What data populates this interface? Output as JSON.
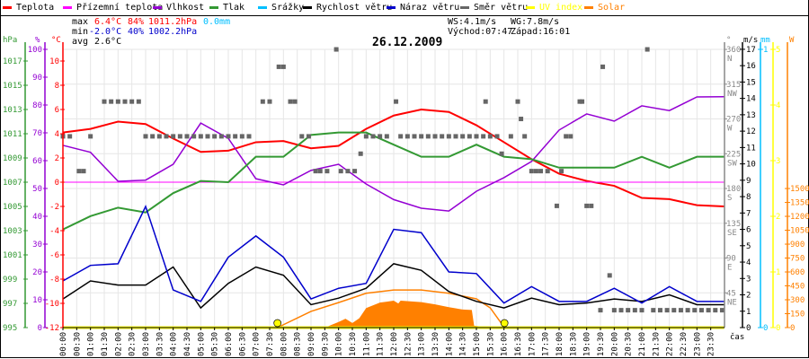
{
  "legend": [
    {
      "label": "Teplota",
      "color": "#ff0000"
    },
    {
      "label": "Přízemní teplota",
      "color": "#ff00ff"
    },
    {
      "label": "Vlhkost",
      "color": "#9400d3"
    },
    {
      "label": "Tlak",
      "color": "#339933"
    },
    {
      "label": "Srážky",
      "color": "#00bfff"
    },
    {
      "label": "Rychlost větru",
      "color": "#000000"
    },
    {
      "label": "Náraz větru",
      "color": "#0000cc"
    },
    {
      "label": "Směr větru",
      "color": "#666666"
    },
    {
      "label": "UV index",
      "color": "#ffff00"
    },
    {
      "label": "Solar",
      "color": "#ff8000"
    }
  ],
  "stats": {
    "max_label": "max",
    "max_temp": "6.4°C",
    "max_hum": "84%",
    "max_press": "1011.2hPa",
    "max_rain": "0.0mm",
    "min_label": "min",
    "min_temp": "-2.0°C",
    "min_hum": "40%",
    "min_press": "1002.2hPa",
    "avg_label": "avg",
    "avg_temp": "2.6°C",
    "ws": "WS:4.1m/s",
    "wg": "WG:7.8m/s",
    "sunrise": "Východ:07:47",
    "sunset": "Západ:16:01"
  },
  "chart_data": {
    "type": "line",
    "title": "26.12.2009",
    "xlabel": "čas",
    "grid": true,
    "x_ticks": [
      "00:00",
      "00:30",
      "01:00",
      "01:30",
      "02:00",
      "02:30",
      "03:00",
      "03:30",
      "04:00",
      "04:30",
      "05:00",
      "05:30",
      "06:00",
      "06:30",
      "07:00",
      "07:30",
      "08:00",
      "08:30",
      "09:00",
      "09:30",
      "10:00",
      "10:30",
      "11:00",
      "11:30",
      "12:00",
      "12:30",
      "13:00",
      "13:30",
      "14:00",
      "14:30",
      "15:00",
      "15:30",
      "16:00",
      "16:30",
      "17:00",
      "17:30",
      "18:00",
      "18:30",
      "19:00",
      "19:30",
      "20:00",
      "20:30",
      "21:00",
      "21:30",
      "22:00",
      "22:30",
      "23:00",
      "23:30"
    ],
    "axes": {
      "pressure": {
        "unit": "hPa",
        "range": [
          995,
          1018
        ],
        "ticks": [
          "995",
          "997",
          "999",
          "1001",
          "1003",
          "1005",
          "1007",
          "1009",
          "1011",
          "1013",
          "1015",
          "1017"
        ],
        "color": "#339933"
      },
      "humidity": {
        "unit": "%",
        "range": [
          0,
          100
        ],
        "ticks": [
          "0",
          "10",
          "20",
          "30",
          "40",
          "50",
          "60",
          "70",
          "80",
          "90",
          "100"
        ],
        "color": "#9400d3"
      },
      "temperature": {
        "unit": "°C",
        "range": [
          -12,
          11
        ],
        "ticks": [
          "-12",
          "-10",
          "-8",
          "-6",
          "-4",
          "-2",
          "0",
          "2",
          "4",
          "6",
          "8",
          "10"
        ],
        "color": "#ff0000"
      },
      "direction": {
        "unit": "°",
        "range": [
          0,
          360
        ],
        "ticks": [
          {
            "v": "45",
            "d": "NE"
          },
          {
            "v": "90",
            "d": "E"
          },
          {
            "v": "135",
            "d": "SE"
          },
          {
            "v": "180",
            "d": "S"
          },
          {
            "v": "225",
            "d": "SW"
          },
          {
            "v": "270",
            "d": "W"
          },
          {
            "v": "315",
            "d": "NW"
          },
          {
            "v": "360",
            "d": "N"
          }
        ],
        "color": "#666666"
      },
      "wind": {
        "unit": "m/s",
        "range": [
          0,
          17
        ],
        "ticks": [
          "0",
          "1",
          "2",
          "3",
          "4",
          "5",
          "6",
          "7",
          "8",
          "9",
          "10",
          "11",
          "12",
          "13",
          "14",
          "15",
          "16",
          "17"
        ],
        "color": "#000000"
      },
      "rain": {
        "unit": "mm",
        "range": [
          0,
          1
        ],
        "ticks": [
          "0",
          "1"
        ],
        "color": "#00bfff"
      },
      "uv": {
        "unit": "",
        "range": [
          0,
          5
        ],
        "ticks": [
          "0",
          "1",
          "2",
          "3",
          "4",
          "5"
        ],
        "color": "#ffff00"
      },
      "solar": {
        "unit": "W",
        "range": [
          0,
          3000
        ],
        "ticks": [
          "0",
          "150",
          "300",
          "450",
          "600",
          "750",
          "900",
          "1050",
          "1200",
          "1350",
          "1500"
        ],
        "color": "#ff8000"
      }
    },
    "x": [
      "00:00",
      "01:00",
      "02:00",
      "03:00",
      "04:00",
      "05:00",
      "06:00",
      "07:00",
      "08:00",
      "09:00",
      "10:00",
      "11:00",
      "12:00",
      "13:00",
      "14:00",
      "15:00",
      "16:00",
      "17:00",
      "18:00",
      "19:00",
      "20:00",
      "21:00",
      "22:00",
      "23:00",
      "23:59"
    ],
    "series": [
      {
        "name": "Teplota",
        "axis": "temperature",
        "color": "#ff0000",
        "values": [
          4.1,
          4.4,
          5.0,
          4.8,
          3.6,
          2.5,
          2.6,
          3.3,
          3.4,
          2.8,
          3.0,
          4.4,
          5.5,
          6.0,
          5.8,
          4.7,
          3.3,
          1.9,
          0.7,
          0.1,
          -0.3,
          -1.3,
          -1.4,
          -1.9,
          -2.0
        ]
      },
      {
        "name": "Přízemní teplota",
        "axis": "temperature",
        "color": "#ff00ff",
        "values": [
          0,
          0,
          0,
          0,
          0,
          0,
          0,
          0,
          0,
          0,
          0,
          0,
          0,
          0,
          0,
          0,
          0,
          0,
          0,
          0,
          0,
          0,
          0,
          0,
          0
        ]
      },
      {
        "name": "Vlhkost",
        "axis": "humidity",
        "color": "#9400d3",
        "values": [
          65.5,
          63,
          52.6,
          53,
          58.7,
          73.5,
          68,
          53.5,
          51.3,
          56.5,
          58.7,
          51.6,
          46,
          42.9,
          41.9,
          49,
          53.9,
          59.7,
          71,
          76.8,
          74.2,
          79.7,
          78,
          82.9,
          83
        ]
      },
      {
        "name": "Tlak",
        "axis": "pressure",
        "color": "#339933",
        "values": [
          1003.1,
          1004.2,
          1004.9,
          1004.5,
          1006.1,
          1007.1,
          1007,
          1009.1,
          1009.1,
          1010.9,
          1011.1,
          1011.1,
          1010.1,
          1009.1,
          1009.1,
          1010.1,
          1009.1,
          1008.9,
          1008.2,
          1008.2,
          1008.2,
          1009.1,
          1008.2,
          1009.1,
          1009.1
        ]
      },
      {
        "name": "Srážky",
        "axis": "rain",
        "color": "#00bfff",
        "values": [
          0,
          0,
          0,
          0,
          0,
          0,
          0,
          0,
          0,
          0,
          0,
          0,
          0,
          0,
          0,
          0,
          0,
          0,
          0,
          0,
          0,
          0,
          0,
          0,
          0
        ]
      },
      {
        "name": "Rychlost větru",
        "axis": "wind",
        "color": "#000000",
        "values": [
          1.75,
          2.85,
          2.6,
          2.6,
          3.7,
          1.2,
          2.7,
          3.7,
          3.2,
          1.4,
          1.8,
          2.4,
          3.9,
          3.5,
          2.2,
          1.6,
          1.2,
          1.8,
          1.4,
          1.5,
          1.75,
          1.6,
          2.0,
          1.4,
          1.4
        ]
      },
      {
        "name": "Náraz větru",
        "axis": "wind",
        "color": "#0000cc",
        "values": [
          2.85,
          3.8,
          3.9,
          7.4,
          2.3,
          1.6,
          4.3,
          5.6,
          4.3,
          1.75,
          2.4,
          2.7,
          6.0,
          5.8,
          3.4,
          3.3,
          1.5,
          2.5,
          1.6,
          1.6,
          2.4,
          1.5,
          2.5,
          1.6,
          1.6
        ]
      },
      {
        "name": "UV index",
        "axis": "uv",
        "color": "#ffff00",
        "values": [
          0,
          0,
          0,
          0,
          0,
          0,
          0,
          0,
          0,
          0,
          0,
          0,
          0,
          0,
          0,
          0,
          0,
          0,
          0,
          0,
          0,
          0,
          0,
          0,
          0
        ]
      }
    ],
    "solar_line": {
      "name": "Solar",
      "axis": "solar",
      "color": "#ff8000",
      "points": [
        [
          "07:47",
          0
        ],
        [
          "09:00",
          175
        ],
        [
          "10:00",
          270
        ],
        [
          "11:00",
          370
        ],
        [
          "12:00",
          405
        ],
        [
          "13:00",
          405
        ],
        [
          "14:00",
          370
        ],
        [
          "15:00",
          310
        ],
        [
          "15:30",
          213
        ],
        [
          "16:01",
          0
        ]
      ]
    },
    "solar_fill": {
      "axis": "solar",
      "color": "#ff8000",
      "points": [
        [
          "09:30",
          0
        ],
        [
          "10:00",
          60
        ],
        [
          "10:15",
          95
        ],
        [
          "10:30",
          50
        ],
        [
          "10:45",
          100
        ],
        [
          "11:00",
          210
        ],
        [
          "11:30",
          270
        ],
        [
          "11:45",
          280
        ],
        [
          "12:00",
          290
        ],
        [
          "12:10",
          260
        ],
        [
          "12:15",
          290
        ],
        [
          "13:00",
          275
        ],
        [
          "13:30",
          250
        ],
        [
          "14:00",
          220
        ],
        [
          "14:30",
          195
        ],
        [
          "14:50",
          190
        ],
        [
          "14:55",
          20
        ],
        [
          "15:30",
          0
        ]
      ]
    },
    "wind_direction": {
      "name": "Směr větru",
      "axis": "direction",
      "color": "#666666",
      "points": [
        [
          "00:00",
          247.5
        ],
        [
          "00:15",
          247.5
        ],
        [
          "00:35",
          202.5
        ],
        [
          "00:45",
          202.5
        ],
        [
          "01:00",
          247.5
        ],
        [
          "01:30",
          292.5
        ],
        [
          "01:45",
          292.5
        ],
        [
          "02:00",
          292.5
        ],
        [
          "02:15",
          292.5
        ],
        [
          "02:30",
          292.5
        ],
        [
          "02:45",
          292.5
        ],
        [
          "03:00",
          247.5
        ],
        [
          "03:15",
          247.5
        ],
        [
          "03:30",
          247.5
        ],
        [
          "03:45",
          247.5
        ],
        [
          "04:00",
          247.5
        ],
        [
          "04:15",
          247.5
        ],
        [
          "04:30",
          247.5
        ],
        [
          "04:45",
          247.5
        ],
        [
          "05:00",
          247.5
        ],
        [
          "05:15",
          247.5
        ],
        [
          "05:30",
          247.5
        ],
        [
          "05:45",
          247.5
        ],
        [
          "06:00",
          247.5
        ],
        [
          "06:15",
          247.5
        ],
        [
          "06:30",
          247.5
        ],
        [
          "06:45",
          247.5
        ],
        [
          "07:15",
          292.5
        ],
        [
          "07:30",
          292.5
        ],
        [
          "07:50",
          337.5
        ],
        [
          "08:00",
          337.5
        ],
        [
          "08:15",
          292.5
        ],
        [
          "08:25",
          292.5
        ],
        [
          "08:40",
          247.5
        ],
        [
          "08:55",
          247.5
        ],
        [
          "09:10",
          202.5
        ],
        [
          "09:20",
          202.5
        ],
        [
          "09:35",
          202.5
        ],
        [
          "09:55",
          360
        ],
        [
          "10:05",
          202.5
        ],
        [
          "10:20",
          202.5
        ],
        [
          "10:35",
          202.5
        ],
        [
          "10:48",
          225
        ],
        [
          "11:00",
          247.5
        ],
        [
          "11:15",
          247.5
        ],
        [
          "11:30",
          247.5
        ],
        [
          "11:45",
          247.5
        ],
        [
          "12:05",
          292.5
        ],
        [
          "12:15",
          247.5
        ],
        [
          "12:30",
          247.5
        ],
        [
          "12:45",
          247.5
        ],
        [
          "13:00",
          247.5
        ],
        [
          "13:15",
          247.5
        ],
        [
          "13:30",
          247.5
        ],
        [
          "13:45",
          247.5
        ],
        [
          "14:00",
          247.5
        ],
        [
          "14:15",
          247.5
        ],
        [
          "14:30",
          247.5
        ],
        [
          "14:45",
          247.5
        ],
        [
          "15:00",
          247.5
        ],
        [
          "15:15",
          247.5
        ],
        [
          "15:20",
          292.5
        ],
        [
          "15:30",
          247.5
        ],
        [
          "15:45",
          247.5
        ],
        [
          "15:55",
          225
        ],
        [
          "16:15",
          247.5
        ],
        [
          "16:30",
          292.5
        ],
        [
          "16:37",
          270
        ],
        [
          "16:45",
          247.5
        ],
        [
          "17:00",
          202.5
        ],
        [
          "17:10",
          202.5
        ],
        [
          "17:20",
          202.5
        ],
        [
          "17:35",
          202.5
        ],
        [
          "17:55",
          157.5
        ],
        [
          "18:05",
          202.5
        ],
        [
          "18:15",
          247.5
        ],
        [
          "18:25",
          247.5
        ],
        [
          "18:45",
          292.5
        ],
        [
          "18:50",
          292.5
        ],
        [
          "19:00",
          157.5
        ],
        [
          "19:10",
          157.5
        ],
        [
          "19:30",
          22.5
        ],
        [
          "19:35",
          337.5
        ],
        [
          "19:50",
          67.5
        ],
        [
          "20:00",
          22.5
        ],
        [
          "20:15",
          22.5
        ],
        [
          "20:30",
          22.5
        ],
        [
          "20:45",
          22.5
        ],
        [
          "21:00",
          22.5
        ],
        [
          "21:12",
          360
        ],
        [
          "21:25",
          22.5
        ],
        [
          "21:40",
          22.5
        ],
        [
          "21:55",
          22.5
        ],
        [
          "22:10",
          22.5
        ],
        [
          "22:25",
          22.5
        ],
        [
          "22:40",
          22.5
        ],
        [
          "22:55",
          22.5
        ],
        [
          "23:10",
          22.5
        ],
        [
          "23:25",
          22.5
        ],
        [
          "23:40",
          22.5
        ],
        [
          "23:55",
          22.5
        ]
      ]
    },
    "sun_markers": [
      {
        "label": "sunrise",
        "time": "07:47"
      },
      {
        "label": "sunset",
        "time": "16:01"
      }
    ]
  }
}
